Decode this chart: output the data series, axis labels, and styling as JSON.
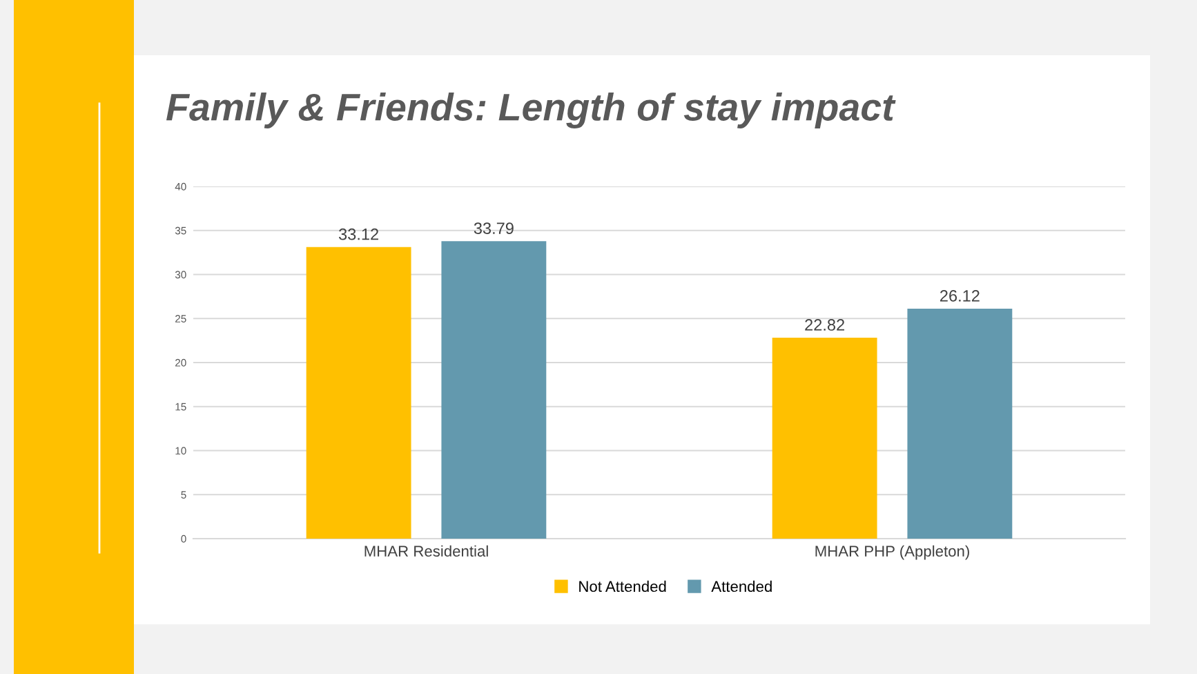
{
  "chart_data": {
    "type": "bar",
    "title": "Family & Friends: Length of stay impact",
    "categories": [
      "MHAR Residential",
      "MHAR PHP (Appleton)"
    ],
    "series": [
      {
        "name": "Not Attended",
        "color": "#ffc000",
        "values": [
          33.12,
          22.82
        ]
      },
      {
        "name": "Attended",
        "color": "#6399ae",
        "values": [
          33.79,
          26.12
        ]
      }
    ],
    "ylim": [
      0,
      40
    ],
    "yticks": [
      0,
      5,
      10,
      15,
      20,
      25,
      30,
      35,
      40
    ],
    "grid": "y",
    "legend": "bottom",
    "data_labels": true
  }
}
